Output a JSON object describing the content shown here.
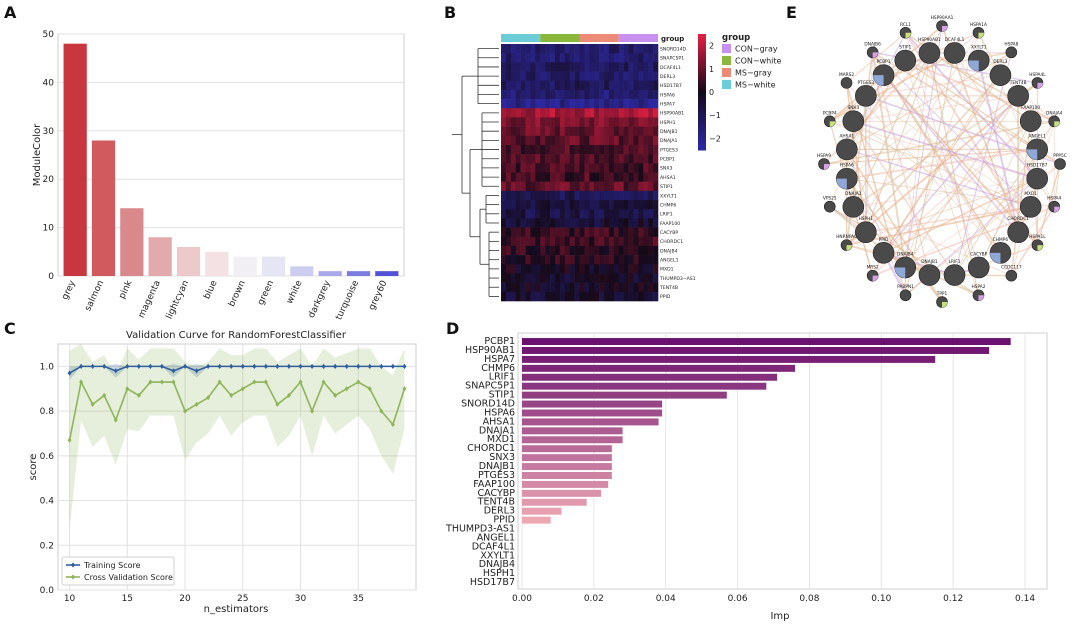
{
  "panels": {
    "a": {
      "label": "A"
    },
    "b": {
      "label": "B"
    },
    "c": {
      "label": "C"
    },
    "d": {
      "label": "D"
    },
    "e": {
      "label": "E"
    }
  },
  "chart_data": [
    {
      "id": "A",
      "type": "bar",
      "title": "",
      "xlabel": "",
      "ylabel": "ModuleColor",
      "ylim": [
        0,
        50
      ],
      "yticks": [
        0,
        10,
        20,
        30,
        40,
        50
      ],
      "categories": [
        "grey",
        "salmon",
        "pink",
        "magenta",
        "lightcyan",
        "blue",
        "brown",
        "green",
        "white",
        "darkgrey",
        "turquoise",
        "grey60"
      ],
      "values": [
        48,
        28,
        14,
        8,
        6,
        5,
        4,
        4,
        2,
        1,
        1,
        1
      ],
      "colors": [
        "#c8373f",
        "#d05a5e",
        "#d9888c",
        "#e2aaac",
        "#ecc9ca",
        "#f4e1e3",
        "#f1eef4",
        "#e5e5f3",
        "#cdcdef",
        "#a7a7e9",
        "#7b7be0",
        "#5252d6"
      ]
    },
    {
      "id": "B",
      "type": "heatmap",
      "legend_title": "group",
      "groups": [
        "CON−gray",
        "CON−white",
        "MS−gray",
        "MS−white"
      ],
      "group_colors": [
        "#c890f0",
        "#8ab83c",
        "#ec8a78",
        "#6ccdd8"
      ],
      "column_groups": [
        "MS−white",
        "CON−white",
        "MS−gray",
        "CON−gray"
      ],
      "columns_per_group": 8,
      "rows": [
        "SNORD14D",
        "SNAPC5P1",
        "DCAF4L1",
        "DERL3",
        "HSD17B7",
        "HSPA6",
        "HSPA7",
        "HSP90AB1",
        "HSPH1",
        "DNAJB1",
        "DNAJA1",
        "PTGES3",
        "PCBP1",
        "SNX3",
        "AHSA1",
        "STIP1",
        "XXYLT1",
        "CHMP6",
        "LRIF1",
        "FAAP100",
        "CACYBP",
        "CHORDC1",
        "DNAJB4",
        "ANGEL1",
        "MXD1",
        "THUMPD3−AS1",
        "TENT4B",
        "PPID"
      ],
      "row_means": [
        -1.4,
        -1.5,
        -1.2,
        -1.3,
        -1.1,
        -1.6,
        -2.0,
        1.8,
        1.2,
        1.0,
        0.9,
        0.7,
        0.8,
        0.6,
        0.6,
        0.9,
        -1.0,
        -0.6,
        -0.8,
        -0.4,
        0.4,
        0.5,
        0.3,
        0.2,
        -0.1,
        -0.3,
        -0.2,
        -0.4
      ],
      "colorbar_ticks": [
        2,
        1,
        0,
        -1,
        -2
      ],
      "colorbar_labels": [
        "2",
        "1",
        "0",
        "−1",
        "−2"
      ],
      "vrange": [
        -2.5,
        2.5
      ]
    },
    {
      "id": "C",
      "type": "line",
      "title": "Validation Curve for RandomForestClassifier",
      "xlabel": "n_estimators",
      "ylabel": "score",
      "xlim": [
        9,
        40
      ],
      "ylim": [
        0,
        1.1
      ],
      "xticks": [
        10,
        15,
        20,
        25,
        30,
        35
      ],
      "yticks": [
        0.0,
        0.2,
        0.4,
        0.6,
        0.8,
        1.0
      ],
      "ytick_labels": [
        "0.0",
        "0.2",
        "0.4",
        "0.6",
        "0.8",
        "1.0"
      ],
      "x": [
        10,
        11,
        12,
        13,
        14,
        15,
        16,
        17,
        18,
        19,
        20,
        21,
        22,
        23,
        24,
        25,
        26,
        27,
        28,
        29,
        30,
        31,
        32,
        33,
        34,
        35,
        36,
        37,
        38,
        39
      ],
      "series": [
        {
          "name": "Training Score",
          "color": "#2f5e9e",
          "values": [
            0.97,
            1.0,
            1.0,
            1.0,
            0.98,
            1.0,
            1.0,
            1.0,
            1.0,
            0.98,
            1.0,
            0.98,
            1.0,
            1.0,
            1.0,
            1.0,
            1.0,
            1.0,
            1.0,
            1.0,
            1.0,
            1.0,
            1.0,
            1.0,
            1.0,
            1.0,
            1.0,
            1.0,
            1.0,
            1.0
          ],
          "band": [
            0.03,
            0.0,
            0.0,
            0.0,
            0.03,
            0.0,
            0.0,
            0.0,
            0.0,
            0.03,
            0.0,
            0.03,
            0.0,
            0.0,
            0.0,
            0.0,
            0.0,
            0.0,
            0.0,
            0.0,
            0.0,
            0.0,
            0.0,
            0.0,
            0.0,
            0.0,
            0.0,
            0.0,
            0.0,
            0.0
          ]
        },
        {
          "name": "Cross Validation Score",
          "color": "#8fb55a",
          "values": [
            0.67,
            0.93,
            0.83,
            0.87,
            0.76,
            0.9,
            0.87,
            0.93,
            0.93,
            0.93,
            0.8,
            0.83,
            0.86,
            0.93,
            0.87,
            0.9,
            0.93,
            0.93,
            0.83,
            0.87,
            0.93,
            0.8,
            0.93,
            0.87,
            0.9,
            0.93,
            0.9,
            0.8,
            0.74,
            0.9
          ],
          "band": [
            0.4,
            0.17,
            0.19,
            0.18,
            0.2,
            0.18,
            0.16,
            0.15,
            0.15,
            0.15,
            0.22,
            0.17,
            0.16,
            0.15,
            0.18,
            0.15,
            0.15,
            0.15,
            0.19,
            0.18,
            0.15,
            0.2,
            0.15,
            0.17,
            0.16,
            0.15,
            0.18,
            0.2,
            0.22,
            0.18
          ]
        }
      ],
      "legend_position": "bottom-left"
    },
    {
      "id": "D",
      "type": "bar",
      "orientation": "horizontal",
      "title": "",
      "xlabel": "Imp",
      "ylabel": "",
      "xlim": [
        0,
        0.145
      ],
      "xticks": [
        0.0,
        0.02,
        0.04,
        0.06,
        0.08,
        0.1,
        0.12,
        0.14
      ],
      "xtick_labels": [
        "0.00",
        "0.02",
        "0.04",
        "0.06",
        "0.08",
        "0.10",
        "0.12",
        "0.14"
      ],
      "categories": [
        "PCBP1",
        "HSP90AB1",
        "HSPA7",
        "CHMP6",
        "LRIF1",
        "SNAPC5P1",
        "STIP1",
        "SNORD14D",
        "HSPA6",
        "AHSA1",
        "DNAJA1",
        "MXD1",
        "CHORDC1",
        "SNX3",
        "DNAJB1",
        "PTGES3",
        "FAAP100",
        "CACYBP",
        "TENT4B",
        "DERL3",
        "PPID",
        "THUMPD3-AS1",
        "ANGEL1",
        "DCAF4L1",
        "XXYLT1",
        "DNAJB4",
        "HSPH1",
        "HSD17B7"
      ],
      "values": [
        0.136,
        0.13,
        0.115,
        0.076,
        0.071,
        0.068,
        0.057,
        0.039,
        0.039,
        0.038,
        0.028,
        0.028,
        0.025,
        0.025,
        0.025,
        0.025,
        0.024,
        0.022,
        0.018,
        0.011,
        0.008,
        0.0,
        0.0,
        0.0,
        0.0,
        0.0,
        0.0,
        0.0
      ]
    },
    {
      "id": "E",
      "type": "network",
      "nodes": [
        "HSP90AA1",
        "HSPA1A",
        "HSPA8",
        "HSPA4L",
        "DNAJA4",
        "PPP5C",
        "HSPA4",
        "HSPA1L",
        "CCDC117",
        "HSPA2",
        "TPP1",
        "PABPN1",
        "MRS2",
        "HNRNPA0",
        "VPS25",
        "HSPA9",
        "PCBP4",
        "MARS2",
        "DNAJB6",
        "RCL1",
        "DCAF4L1",
        "XXYLT1",
        "DERL3",
        "TENT4B",
        "FAAP100",
        "ANGEL1",
        "HSD17B7",
        "MXD1",
        "CHORDC1",
        "CHMP6",
        "CACYBP",
        "LRIF1",
        "DNAJB1",
        "DNAJB4",
        "PPID",
        "HSPH1",
        "DNAJA1",
        "HSPA6",
        "AHSA1",
        "SNX3",
        "PTGES3",
        "PCBP1",
        "STIP1",
        "HSP90AB1"
      ]
    }
  ]
}
